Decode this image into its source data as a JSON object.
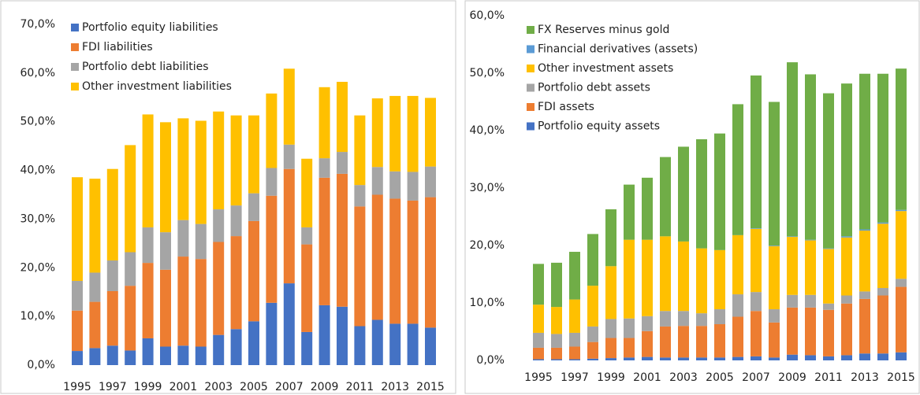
{
  "chart_data": [
    {
      "type": "bar",
      "stacked": true,
      "grid": false,
      "legend": "upper left",
      "categories": [
        "1995",
        null,
        "1997",
        null,
        "1999",
        null,
        "2001",
        null,
        "2003",
        null,
        "2005",
        null,
        "2007",
        null,
        "2009",
        null,
        "2011",
        null,
        "2013",
        null,
        "2015"
      ],
      "ylim": [
        0,
        70
      ],
      "yticks": [
        {
          "value": 0,
          "label": "0,0%"
        },
        {
          "value": 10,
          "label": "10,0%"
        },
        {
          "value": 20,
          "label": "20,0%"
        },
        {
          "value": 30,
          "label": "30,0%"
        },
        {
          "value": 40,
          "label": "40,0%"
        },
        {
          "value": 50,
          "label": "50,0%"
        },
        {
          "value": 60,
          "label": "60,0%"
        },
        {
          "value": 70,
          "label": "70,0%"
        }
      ],
      "series": [
        {
          "name": "Portfolio equity liabilities",
          "color": "#4472c4",
          "values": [
            2.9,
            3.5,
            4.0,
            3.0,
            5.5,
            3.8,
            4.0,
            3.8,
            6.2,
            7.4,
            9.0,
            12.8,
            16.8,
            6.8,
            12.3,
            12.0,
            8.0,
            9.3,
            8.5,
            8.5,
            7.7
          ]
        },
        {
          "name": "FDI liabilities",
          "color": "#ed7d31",
          "values": [
            8.3,
            9.5,
            11.2,
            13.3,
            15.5,
            15.8,
            18.3,
            18.0,
            19.1,
            19.1,
            20.6,
            22.0,
            23.5,
            18.0,
            26.2,
            27.3,
            24.6,
            25.7,
            25.7,
            25.3,
            26.8
          ]
        },
        {
          "name": "Portfolio debt liabilities",
          "color": "#a5a5a5",
          "values": [
            6.1,
            6.0,
            6.3,
            6.9,
            7.3,
            7.7,
            7.5,
            7.2,
            6.7,
            6.3,
            5.7,
            5.7,
            5.0,
            3.5,
            4.0,
            4.5,
            4.4,
            5.7,
            5.6,
            5.9,
            6.3
          ]
        },
        {
          "name": "Other investment liabilities",
          "color": "#ffc000",
          "values": [
            21.3,
            19.3,
            18.8,
            22.0,
            23.2,
            22.6,
            20.9,
            21.2,
            20.1,
            18.5,
            16.0,
            15.3,
            15.6,
            14.1,
            14.6,
            14.4,
            14.3,
            14.1,
            15.5,
            15.6,
            14.1
          ]
        }
      ]
    },
    {
      "type": "bar",
      "stacked": true,
      "grid": false,
      "legend": "upper left",
      "categories": [
        "1995",
        null,
        "1997",
        null,
        "1999",
        null,
        "2001",
        null,
        "2003",
        null,
        "2005",
        null,
        "2007",
        null,
        "2009",
        null,
        "2011",
        null,
        "2013",
        null,
        "2015"
      ],
      "ylim": [
        0,
        60
      ],
      "yticks": [
        {
          "value": 0,
          "label": "0,0%"
        },
        {
          "value": 10,
          "label": "10,0%"
        },
        {
          "value": 20,
          "label": "20,0%"
        },
        {
          "value": 30,
          "label": "30,0%"
        },
        {
          "value": 40,
          "label": "40,0%"
        },
        {
          "value": 50,
          "label": "50,0%"
        },
        {
          "value": 60,
          "label": "60,0%"
        }
      ],
      "series": [
        {
          "name": "Portfolio equity assets",
          "color": "#4472c4",
          "values": [
            0.2,
            0.2,
            0.2,
            0.3,
            0.4,
            0.5,
            0.6,
            0.5,
            0.5,
            0.5,
            0.5,
            0.6,
            0.7,
            0.5,
            1.0,
            0.9,
            0.7,
            0.9,
            1.2,
            1.2,
            1.4
          ]
        },
        {
          "name": "FDI assets",
          "color": "#ed7d31",
          "values": [
            2.0,
            2.0,
            2.2,
            2.9,
            3.5,
            3.4,
            4.5,
            5.4,
            5.5,
            5.5,
            5.8,
            7.0,
            7.9,
            6.1,
            8.2,
            8.3,
            8.1,
            9.0,
            9.5,
            10.1,
            11.4
          ]
        },
        {
          "name": "Portfolio debt assets",
          "color": "#a5a5a5",
          "values": [
            2.6,
            2.4,
            2.4,
            2.7,
            3.3,
            3.4,
            2.6,
            2.7,
            2.6,
            2.2,
            2.6,
            3.9,
            3.3,
            2.3,
            2.2,
            2.2,
            1.1,
            1.4,
            1.3,
            1.3,
            1.4
          ]
        },
        {
          "name": "Other investment assets",
          "color": "#ffc000",
          "values": [
            4.9,
            4.7,
            5.8,
            7.1,
            9.2,
            13.7,
            13.3,
            13.0,
            12.1,
            11.3,
            10.3,
            10.3,
            11.0,
            11.0,
            10.1,
            9.5,
            9.5,
            10.1,
            10.6,
            11.2,
            11.8
          ]
        },
        {
          "name": "Financial derivatives (assets)",
          "color": "#5b9bd5",
          "values": [
            0,
            0,
            0,
            0,
            0,
            0,
            0,
            0,
            0,
            0,
            0,
            0,
            0.1,
            0.1,
            0.1,
            0.1,
            0.1,
            0.2,
            0.2,
            0.2,
            0.2
          ]
        },
        {
          "name": "FX Reserves minus gold",
          "color": "#70ad47",
          "values": [
            7.1,
            7.7,
            8.3,
            9.0,
            9.9,
            9.6,
            10.8,
            13.8,
            16.5,
            19.0,
            20.3,
            22.8,
            26.6,
            25.0,
            30.3,
            28.8,
            27.0,
            26.6,
            27.1,
            25.9,
            24.6
          ]
        }
      ]
    }
  ]
}
